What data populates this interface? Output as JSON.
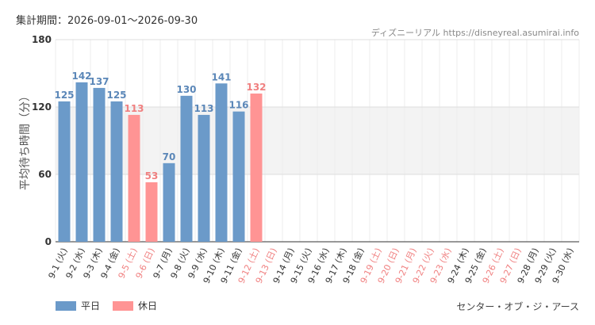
{
  "header": {
    "period": "集計期間：2026-09-01～2026-09-30",
    "source": "ディズニーリアル https://disneyreal.asumirai.info"
  },
  "legend": {
    "weekday_label": "平日",
    "holiday_label": "休日"
  },
  "attraction": "センター・オブ・ジ・アース",
  "colors": {
    "weekday": "#6b9ac9",
    "holiday": "#ff9494",
    "holiday_text": "#f08080",
    "band": "#f3f3f3"
  },
  "chart_data": {
    "type": "bar",
    "ylabel": "平均待ち時間（分）",
    "ylim": [
      0,
      180
    ],
    "yticks": [
      0,
      60,
      120,
      180
    ],
    "highlight_band": [
      60,
      120
    ],
    "categories": [
      "9-1 (火)",
      "9-2 (水)",
      "9-3 (木)",
      "9-4 (金)",
      "9-5 (土)",
      "9-6 (日)",
      "9-7 (月)",
      "9-8 (火)",
      "9-9 (水)",
      "9-10 (木)",
      "9-11 (金)",
      "9-12 (土)",
      "9-13 (日)",
      "9-14 (月)",
      "9-15 (火)",
      "9-16 (水)",
      "9-17 (木)",
      "9-18 (金)",
      "9-19 (土)",
      "9-20 (日)",
      "9-21 (月)",
      "9-22 (火)",
      "9-23 (水)",
      "9-24 (木)",
      "9-25 (金)",
      "9-26 (土)",
      "9-27 (日)",
      "9-28 (月)",
      "9-29 (火)",
      "9-30 (水)"
    ],
    "holiday": [
      false,
      false,
      false,
      false,
      true,
      true,
      false,
      false,
      false,
      false,
      false,
      true,
      true,
      false,
      false,
      false,
      false,
      false,
      true,
      true,
      true,
      true,
      true,
      false,
      false,
      true,
      true,
      false,
      false,
      false
    ],
    "values": [
      125,
      142,
      137,
      125,
      113,
      53,
      70,
      130,
      113,
      141,
      116,
      132,
      null,
      null,
      null,
      null,
      null,
      null,
      null,
      null,
      null,
      null,
      null,
      null,
      null,
      null,
      null,
      null,
      null,
      null
    ]
  }
}
